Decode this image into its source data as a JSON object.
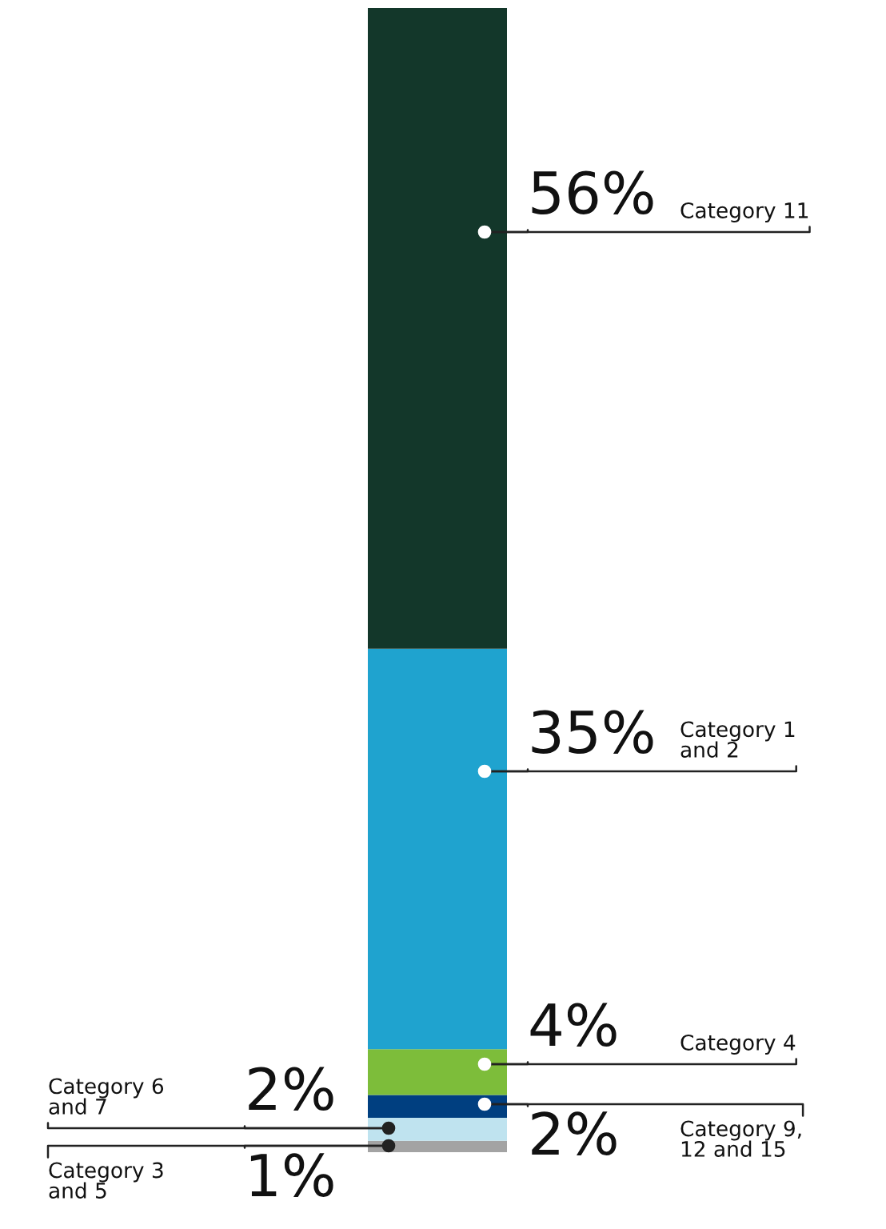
{
  "chart_data": {
    "type": "bar",
    "stacked": true,
    "categories": [
      null
    ],
    "series": [
      {
        "name": "Category 3\nand 5",
        "color": "#a3a3a3",
        "values": [
          1
        ],
        "value_labels": [
          "1%"
        ]
      },
      {
        "name": "Category 6\nand 7",
        "color": "#bfe3ef",
        "values": [
          2
        ],
        "value_labels": [
          "2%"
        ]
      },
      {
        "name": "Category 9,\n12 and 15",
        "color": "#003f80",
        "values": [
          2
        ],
        "value_labels": [
          "2%"
        ]
      },
      {
        "name": "Category 4",
        "color": "#7dbd3a",
        "values": [
          4
        ],
        "value_labels": [
          "4%"
        ]
      },
      {
        "name": "Category 1\nand 2",
        "color": "#1fa3cf",
        "values": [
          35
        ],
        "value_labels": [
          "35%"
        ]
      },
      {
        "name": "Category 11",
        "color": "#13372a",
        "values": [
          56
        ],
        "value_labels": [
          "56%"
        ]
      }
    ]
  }
}
